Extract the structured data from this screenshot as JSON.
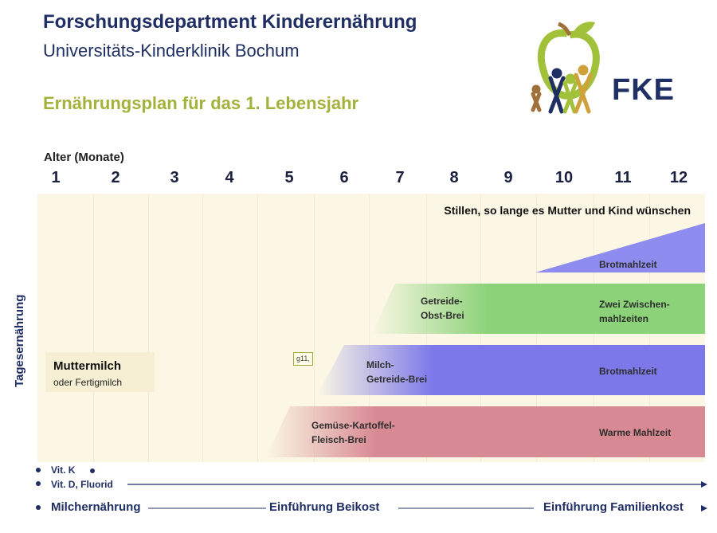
{
  "header": {
    "title": "Forschungsdepartment  Kinderernährung",
    "subtitle": "Universitäts-Kinderklinik  Bochum",
    "plan_title": "Ernährungsplan für das 1. Lebensjahr"
  },
  "logo": {
    "text": "FKE",
    "icon": "apple-family-logo"
  },
  "axis": {
    "label": "Alter (Monate)",
    "months": [
      "1",
      "2",
      "3",
      "4",
      "5",
      "6",
      "7",
      "8",
      "9",
      "10",
      "11",
      "12"
    ]
  },
  "y_label": "Tagesernährung",
  "stillen": "Stillen, so lange es Mutter und Kind wünschen",
  "muttermilch": {
    "title": "Muttermilch",
    "sub": "oder Fertigmilch"
  },
  "badge": "g11,",
  "bands": {
    "brot_top": {
      "label": "Brotmahlzeit",
      "color": "#8f8cf0"
    },
    "green": {
      "label_start": [
        "Getreide-",
        "Obst-Brei"
      ],
      "label_end": [
        "Zwei Zwischen-",
        "mahlzeiten"
      ],
      "color": "#8cd279"
    },
    "blue": {
      "label_start": [
        "Milch-",
        "Getreide-Brei"
      ],
      "label_end": "Brotmahlzeit",
      "color": "#7c78ea"
    },
    "red": {
      "label_start": [
        "Gemüse-Kartoffel-",
        "Fleisch-Brei"
      ],
      "label_end": "Warme Mahlzeit",
      "color": "#d88a94"
    }
  },
  "vitamins": {
    "vit_k": "Vit. K",
    "vit_d": "Vit. D, Fluorid"
  },
  "phases": {
    "p1": "Milchernährung",
    "p2": "Einführung Beikost",
    "p3": "Einführung Familienkost"
  }
}
